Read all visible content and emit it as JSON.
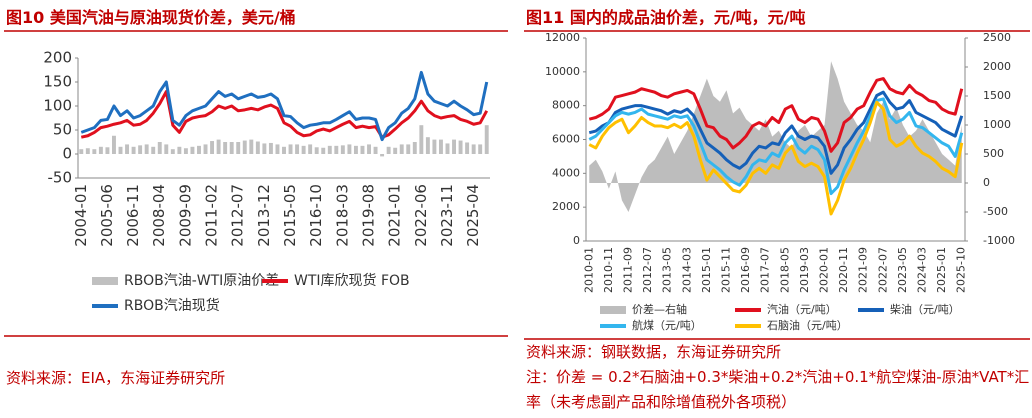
{
  "chart_data": [
    {
      "type": "combo",
      "title": "图10  美国汽油与原油现货价差，美元/桶",
      "source": "资料来源：EIA，东海证券研究所",
      "categories": [
        "2004-01",
        null,
        null,
        null,
        "2005-06",
        null,
        null,
        null,
        "2006-11",
        null,
        null,
        null,
        "2008-04",
        null,
        null,
        null,
        "2009-09",
        null,
        null,
        null,
        "2011-02",
        null,
        null,
        null,
        "2012-07",
        null,
        null,
        null,
        "2013-12",
        null,
        null,
        null,
        "2015-05",
        null,
        null,
        null,
        "2016-10",
        null,
        null,
        null,
        "2018-03",
        null,
        null,
        null,
        "2019-08",
        null,
        null,
        null,
        "2021-01",
        null,
        null,
        null,
        "2022-06",
        null,
        null,
        null,
        "2023-11",
        null,
        null,
        null,
        "2025-04",
        null,
        null
      ],
      "ylim": [
        -50,
        200
      ],
      "yticks": [
        -50,
        0,
        50,
        100,
        150,
        200
      ],
      "series": [
        {
          "name": "RBOB汽油-WTI原油价差",
          "type": "bar",
          "color": "#c0c0c0",
          "values": [
            10,
            12,
            10,
            15,
            14,
            38,
            15,
            20,
            15,
            18,
            20,
            15,
            25,
            20,
            10,
            15,
            12,
            15,
            17,
            20,
            27,
            30,
            25,
            25,
            25,
            28,
            30,
            26,
            22,
            23,
            20,
            15,
            20,
            20,
            17,
            20,
            14,
            13,
            17,
            17,
            18,
            20,
            17,
            17,
            20,
            15,
            -5,
            15,
            13,
            20,
            20,
            25,
            60,
            35,
            30,
            30,
            22,
            30,
            28,
            24,
            20,
            20,
            60
          ]
        },
        {
          "name": "WTI库欣现货 FOB",
          "type": "line",
          "color": "#e0101e",
          "values": [
            35,
            38,
            45,
            55,
            58,
            62,
            65,
            70,
            60,
            62,
            70,
            85,
            105,
            130,
            60,
            45,
            68,
            75,
            78,
            80,
            88,
            100,
            95,
            100,
            90,
            92,
            95,
            92,
            98,
            102,
            95,
            65,
            58,
            45,
            38,
            40,
            48,
            52,
            48,
            55,
            62,
            68,
            55,
            58,
            55,
            57,
            35,
            40,
            52,
            65,
            75,
            90,
            110,
            90,
            80,
            75,
            78,
            80,
            72,
            68,
            62,
            65,
            90
          ]
        },
        {
          "name": "RBOB汽油现货",
          "type": "line",
          "color": "#1f6fc0",
          "values": [
            45,
            50,
            55,
            70,
            72,
            100,
            80,
            90,
            75,
            80,
            90,
            100,
            130,
            150,
            70,
            60,
            80,
            90,
            95,
            100,
            115,
            130,
            120,
            125,
            115,
            120,
            125,
            118,
            120,
            125,
            115,
            80,
            78,
            65,
            55,
            60,
            62,
            65,
            65,
            72,
            80,
            88,
            72,
            75,
            75,
            72,
            30,
            55,
            65,
            85,
            95,
            115,
            170,
            125,
            110,
            105,
            100,
            110,
            100,
            92,
            82,
            85,
            150
          ]
        }
      ]
    },
    {
      "type": "combo",
      "title": "图11  国内的成品油价差，元/吨，元/吨",
      "source": "资料来源：钢联数据，东海证券研究所",
      "note": "注：价差 = 0.2*石脑油+0.3*柴油+0.2*汽油+0.1*航空煤油-原油*VAT*汇率（未考虑副产品和除增值税外各项税）",
      "categories": [
        "2010-01",
        null,
        null,
        "2010-11",
        null,
        null,
        "2011-09",
        null,
        null,
        "2012-07",
        null,
        null,
        "2013-05",
        null,
        null,
        "2014-03",
        null,
        null,
        "2015-01",
        null,
        null,
        "2015-11",
        null,
        null,
        "2016-09",
        null,
        null,
        "2017-07",
        null,
        null,
        "2018-05",
        null,
        null,
        "2019-03",
        null,
        null,
        "2020-01",
        null,
        null,
        "2020-11",
        null,
        null,
        "2021-09",
        null,
        null,
        "2022-07",
        null,
        null,
        "2023-05",
        null,
        null,
        "2024-03",
        null,
        null,
        "2025-01",
        null,
        null,
        "2025-10"
      ],
      "ylim": [
        0,
        12000
      ],
      "yticks": [
        0,
        2000,
        4000,
        6000,
        8000,
        10000,
        12000
      ],
      "y2lim": [
        -1000,
        2500
      ],
      "y2ticks": [
        -1000,
        -500,
        0,
        500,
        1000,
        1500,
        2000,
        2500
      ],
      "series": [
        {
          "name": "价差—右轴",
          "type": "area",
          "axis": "y2",
          "color": "#bdbdbd",
          "values": [
            300,
            400,
            200,
            -100,
            200,
            -300,
            -500,
            -200,
            100,
            300,
            400,
            600,
            800,
            500,
            700,
            900,
            1200,
            1500,
            1800,
            1500,
            1400,
            1600,
            1200,
            1300,
            1100,
            1000,
            900,
            1100,
            800,
            900,
            700,
            600,
            900,
            1000,
            800,
            900,
            1000,
            2100,
            1800,
            1400,
            1200,
            1000,
            900,
            700,
            1200,
            1400,
            1100,
            1300,
            1000,
            800,
            900,
            1100,
            900,
            700,
            500,
            400,
            300,
            1000
          ]
        },
        {
          "name": "汽油（元/吨）",
          "type": "line",
          "color": "#e0101e",
          "values": [
            7200,
            7300,
            7500,
            7800,
            8500,
            8600,
            8700,
            8800,
            9000,
            8900,
            8800,
            8600,
            8500,
            8700,
            8800,
            8900,
            8700,
            7800,
            6800,
            6700,
            6200,
            6000,
            5500,
            5800,
            6200,
            6800,
            7000,
            6800,
            7300,
            7000,
            7800,
            8000,
            7200,
            7000,
            7300,
            7200,
            6500,
            5300,
            5800,
            7000,
            7300,
            7800,
            8000,
            8800,
            9500,
            9600,
            9000,
            8800,
            8700,
            9200,
            8800,
            8600,
            8300,
            8200,
            7800,
            7600,
            7500,
            9000
          ]
        },
        {
          "name": "柴油（元/吨）",
          "type": "line",
          "color": "#1560b8",
          "values": [
            6400,
            6500,
            6800,
            7000,
            7600,
            7800,
            7900,
            8000,
            8000,
            7900,
            7800,
            7700,
            7500,
            7700,
            7600,
            7800,
            7400,
            6600,
            5800,
            5500,
            5200,
            4800,
            4500,
            4300,
            4600,
            5200,
            5600,
            5500,
            5800,
            5700,
            6400,
            6800,
            6200,
            6000,
            6200,
            6100,
            5600,
            4000,
            4500,
            5500,
            6000,
            6600,
            7000,
            7800,
            8600,
            8800,
            8200,
            7800,
            7900,
            8300,
            7600,
            7400,
            7200,
            7000,
            6600,
            6400,
            6200,
            7400
          ]
        },
        {
          "name": "航煤（元/吨）",
          "type": "line",
          "color": "#33b6ee",
          "values": [
            6000,
            6200,
            6600,
            7000,
            7400,
            7600,
            7500,
            7600,
            7800,
            7500,
            7400,
            7300,
            7200,
            7400,
            7300,
            7400,
            6800,
            5800,
            4800,
            4500,
            4200,
            3800,
            3500,
            3300,
            3800,
            4500,
            4800,
            4700,
            5200,
            5000,
            5800,
            6200,
            5500,
            5200,
            5600,
            5400,
            4800,
            2800,
            3200,
            4200,
            5000,
            5800,
            6500,
            7400,
            8300,
            8400,
            7400,
            7000,
            7200,
            7600,
            6800,
            6700,
            6400,
            6100,
            5800,
            5600,
            5000,
            6400
          ]
        },
        {
          "name": "石脑油（元/吨）",
          "type": "line",
          "color": "#ffc000",
          "values": [
            5700,
            5500,
            6200,
            6700,
            7000,
            7200,
            6400,
            6800,
            7300,
            7000,
            6800,
            6800,
            6700,
            6900,
            6700,
            7000,
            6200,
            4800,
            3600,
            4200,
            3800,
            3400,
            3000,
            2900,
            3300,
            4000,
            4300,
            4000,
            4500,
            4300,
            5200,
            5600,
            4700,
            4400,
            4600,
            4400,
            3800,
            1600,
            2400,
            3600,
            4300,
            5200,
            6000,
            7000,
            8200,
            7800,
            6000,
            5600,
            5800,
            6200,
            5600,
            5200,
            5000,
            4700,
            4300,
            4100,
            3800,
            5800
          ]
        }
      ]
    }
  ]
}
